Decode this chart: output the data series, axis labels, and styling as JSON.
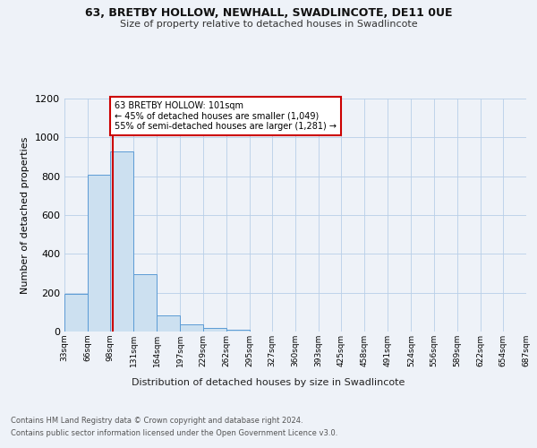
{
  "title_line1": "63, BRETBY HOLLOW, NEWHALL, SWADLINCOTE, DE11 0UE",
  "title_line2": "Size of property relative to detached houses in Swadlincote",
  "xlabel": "Distribution of detached houses by size in Swadlincote",
  "ylabel": "Number of detached properties",
  "bin_labels": [
    "33sqm",
    "66sqm",
    "98sqm",
    "131sqm",
    "164sqm",
    "197sqm",
    "229sqm",
    "262sqm",
    "295sqm",
    "327sqm",
    "360sqm",
    "393sqm",
    "425sqm",
    "458sqm",
    "491sqm",
    "524sqm",
    "556sqm",
    "589sqm",
    "622sqm",
    "654sqm",
    "687sqm"
  ],
  "bin_edges": [
    33,
    66,
    98,
    131,
    164,
    197,
    229,
    262,
    295,
    327,
    360,
    393,
    425,
    458,
    491,
    524,
    556,
    589,
    622,
    654,
    687
  ],
  "bar_heights": [
    195,
    810,
    930,
    295,
    85,
    35,
    20,
    10,
    0,
    0,
    0,
    0,
    0,
    0,
    0,
    0,
    0,
    0,
    0,
    0
  ],
  "bar_color": "#cce0f0",
  "bar_edge_color": "#5b9bd5",
  "property_line_x": 101,
  "annotation_text": "63 BRETBY HOLLOW: 101sqm\n← 45% of detached houses are smaller (1,049)\n55% of semi-detached houses are larger (1,281) →",
  "annotation_box_color": "#ffffff",
  "annotation_border_color": "#cc0000",
  "property_line_color": "#cc0000",
  "ylim": [
    0,
    1200
  ],
  "yticks": [
    0,
    200,
    400,
    600,
    800,
    1000,
    1200
  ],
  "footer_line1": "Contains HM Land Registry data © Crown copyright and database right 2024.",
  "footer_line2": "Contains public sector information licensed under the Open Government Licence v3.0.",
  "background_color": "#eef2f8",
  "plot_background": "#eef2f8"
}
